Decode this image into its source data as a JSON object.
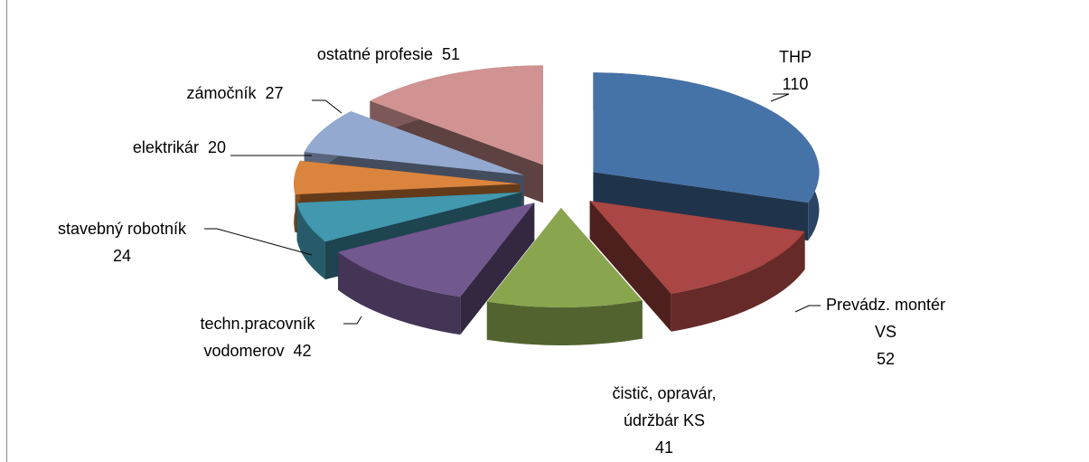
{
  "chart_data": {
    "type": "pie",
    "categories": [
      "THP",
      "Prevádz. montér VS",
      "čistič, opravár, údržbár KS",
      "techn.pracovník vodomerov",
      "stavebný robotník",
      "elektrikár",
      "zámočník",
      "ostatné profesie"
    ],
    "values": [
      110,
      52,
      41,
      42,
      24,
      20,
      27,
      51
    ],
    "colors": [
      "#4572a7",
      "#aa4643",
      "#89a54e",
      "#71588f",
      "#4198af",
      "#db843d",
      "#93a9cf",
      "#d19392"
    ],
    "start_angle": 0,
    "direction": "clockwise",
    "exploded": true,
    "three_d": true
  }
}
